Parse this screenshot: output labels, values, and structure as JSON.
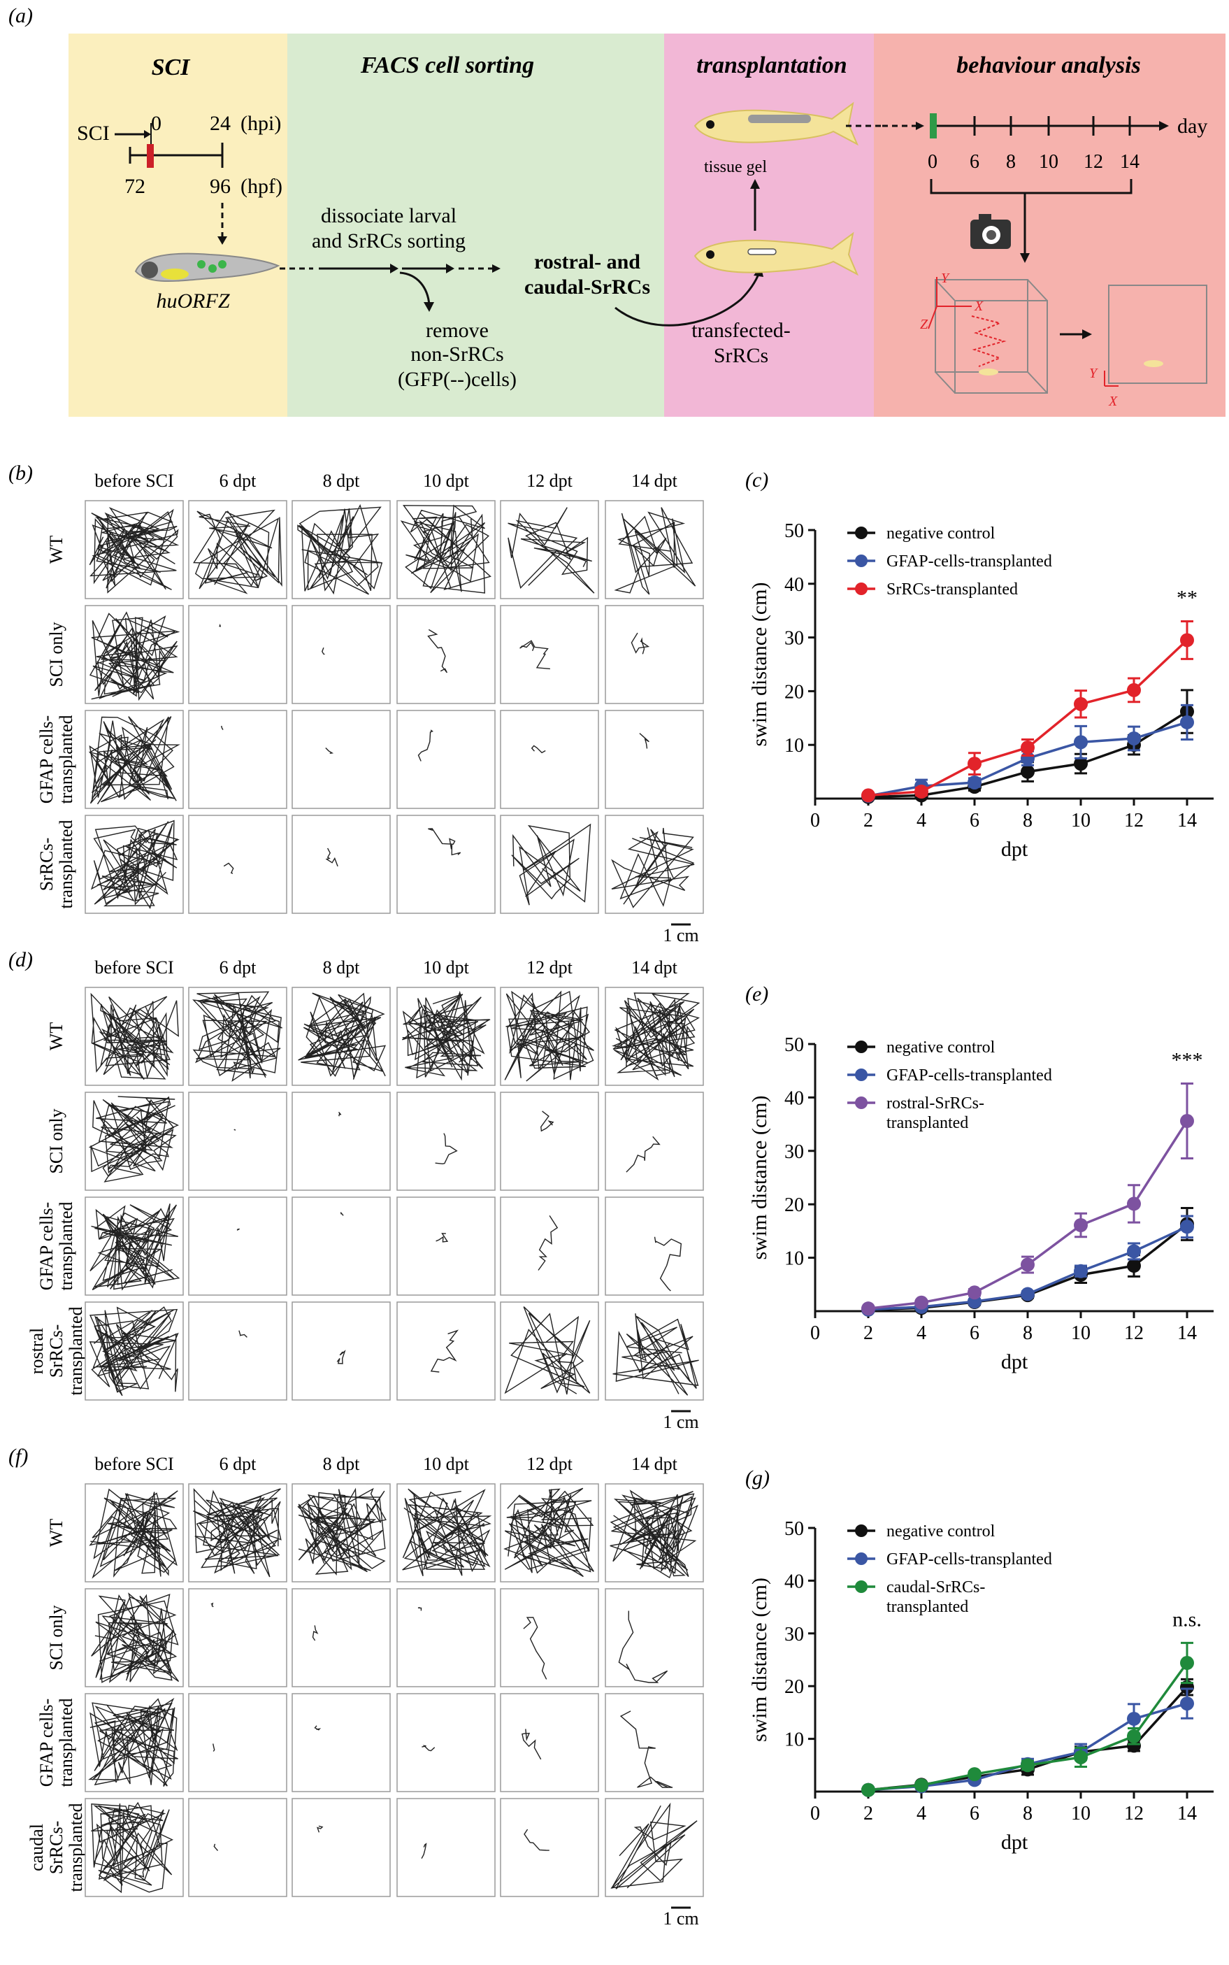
{
  "colors": {
    "sci_bg": "#fbefbe",
    "facs_bg": "#d9ebd0",
    "transplant_bg": "#f2b7d6",
    "behaviour_bg": "#f6b2ad",
    "black_series": "#111111",
    "blue_series": "#3a56a4",
    "red_series": "#e2232a",
    "purple_series": "#7d52a0",
    "green_series": "#1f8a3b",
    "fish": "#f4e39a",
    "red_mark": "#cc2028",
    "green_mark": "#2f9a48"
  },
  "panel_a": {
    "label": "(a)",
    "sci": {
      "title": "SCI",
      "sci_arrow_label": "SCI",
      "hpi_zero": "0",
      "hpi_24": "24",
      "hpi_unit": "(hpi)",
      "hpf_72": "72",
      "hpf_96": "96",
      "hpf_unit": "(hpf)",
      "larva_label": "huORFZ"
    },
    "facs": {
      "title": "FACS cell sorting",
      "step1_line1": "dissociate larval",
      "step1_line2": "and SrRCs sorting",
      "remove_line1": "remove",
      "remove_line2": "non-SrRCs",
      "remove_line3": "(GFP(--)cells)",
      "result_line1": "rostral- and",
      "result_line2": "caudal-SrRCs"
    },
    "transplantation": {
      "title": "transplantation",
      "gel_label": "tissue gel",
      "cells_line1": "transfected-",
      "cells_line2": "SrRCs"
    },
    "behaviour": {
      "title": "behaviour analysis",
      "day_label": "day",
      "ticks": [
        "0",
        "6",
        "8",
        "10",
        "12",
        "14"
      ],
      "axis_x": "X",
      "axis_y": "Y",
      "axis_z": "Z"
    }
  },
  "trajectory_panels": [
    {
      "label": "(b)",
      "columns": [
        "before SCI",
        "6 dpt",
        "8 dpt",
        "10 dpt",
        "12 dpt",
        "14 dpt"
      ],
      "rows": [
        {
          "name": "WT",
          "lines": [
            "WT"
          ],
          "activity": [
            1,
            0.6,
            0.65,
            0.85,
            0.35,
            0.4
          ]
        },
        {
          "name": "SCI only",
          "lines": [
            "SCI only"
          ],
          "activity": [
            1,
            0.02,
            0.05,
            0.15,
            0.2,
            0.15
          ]
        },
        {
          "name": "GFAP cells transplanted",
          "lines": [
            "GFAP cells-",
            "transplanted"
          ],
          "activity": [
            1,
            0.02,
            0.05,
            0.12,
            0.08,
            0.08
          ]
        },
        {
          "name": "SrRCs transplanted",
          "lines": [
            "SrRCs-",
            "transplanted"
          ],
          "activity": [
            1,
            0.07,
            0.12,
            0.18,
            0.3,
            0.4
          ]
        }
      ],
      "scale_bar": "1 cm"
    },
    {
      "label": "(d)",
      "columns": [
        "before SCI",
        "6 dpt",
        "8 dpt",
        "10 dpt",
        "12 dpt",
        "14 dpt"
      ],
      "rows": [
        {
          "name": "WT",
          "lines": [
            "WT"
          ],
          "activity": [
            1,
            1,
            1,
            1,
            1,
            1
          ]
        },
        {
          "name": "SCI only",
          "lines": [
            "SCI only"
          ],
          "activity": [
            1,
            0.03,
            0.04,
            0.14,
            0.14,
            0.15
          ]
        },
        {
          "name": "GFAP cells transplanted",
          "lines": [
            "GFAP cells-",
            "transplanted"
          ],
          "activity": [
            1,
            0.04,
            0.04,
            0.12,
            0.15,
            0.18
          ]
        },
        {
          "name": "rostral SrRCs transplanted",
          "lines": [
            "rostral",
            "SrRCs-",
            "transplanted"
          ],
          "activity": [
            1,
            0.06,
            0.12,
            0.16,
            0.35,
            0.45
          ]
        }
      ],
      "scale_bar": "1 cm"
    },
    {
      "label": "(f)",
      "columns": [
        "before SCI",
        "6 dpt",
        "8 dpt",
        "10 dpt",
        "12 dpt",
        "14 dpt"
      ],
      "rows": [
        {
          "name": "WT",
          "lines": [
            "WT"
          ],
          "activity": [
            1,
            1,
            1,
            1,
            1,
            1
          ]
        },
        {
          "name": "SCI only",
          "lines": [
            "SCI only"
          ],
          "activity": [
            1,
            0.03,
            0.08,
            0.05,
            0.15,
            0.22
          ]
        },
        {
          "name": "GFAP cells transplanted",
          "lines": [
            "GFAP cells-",
            "transplanted"
          ],
          "activity": [
            1,
            0.04,
            0.06,
            0.08,
            0.15,
            0.25
          ]
        },
        {
          "name": "caudal SrRCs transplanted",
          "lines": [
            "caudal",
            "SrRCs-",
            "transplanted"
          ],
          "activity": [
            1,
            0.04,
            0.06,
            0.08,
            0.1,
            0.3
          ]
        }
      ],
      "scale_bar": "1 cm"
    }
  ],
  "chart_data": [
    {
      "panel": "(c)",
      "type": "line",
      "xlabel": "dpt",
      "ylabel": "swim distance (cm)",
      "x": [
        2,
        4,
        6,
        8,
        10,
        12,
        14
      ],
      "xticks": [
        0,
        2,
        4,
        6,
        8,
        10,
        12,
        14
      ],
      "yticks": [
        10,
        20,
        30,
        40,
        50
      ],
      "xlim": [
        0,
        15
      ],
      "ylim": [
        0,
        50
      ],
      "annotation": "**",
      "series": [
        {
          "name": "negative control",
          "color": "#111111",
          "values": [
            0.3,
            0.6,
            2.2,
            5,
            6.5,
            10,
            16.2
          ],
          "errors": [
            0.3,
            0.5,
            0.7,
            1.8,
            1.8,
            1.8,
            4
          ]
        },
        {
          "name": "GFAP-cells-transplanted",
          "color": "#3a56a4",
          "values": [
            0.5,
            2.3,
            3,
            7.5,
            10.5,
            11.2,
            14.2
          ],
          "errors": [
            0.3,
            1.2,
            0.8,
            1.3,
            3,
            2.2,
            3.2
          ]
        },
        {
          "name": "SrRCs-transplanted",
          "color": "#e2232a",
          "values": [
            0.6,
            1.3,
            6.5,
            9.5,
            17.6,
            20.2,
            29.5
          ],
          "errors": [
            0.3,
            0.7,
            2,
            1.5,
            2.5,
            2.2,
            3.5
          ]
        }
      ]
    },
    {
      "panel": "(e)",
      "type": "line",
      "xlabel": "dpt",
      "ylabel": "swim distance (cm)",
      "x": [
        2,
        4,
        6,
        8,
        10,
        12,
        14
      ],
      "xticks": [
        0,
        2,
        4,
        6,
        8,
        10,
        12,
        14
      ],
      "yticks": [
        10,
        20,
        30,
        40,
        50
      ],
      "xlim": [
        0,
        15
      ],
      "ylim": [
        0,
        50
      ],
      "annotation": "***",
      "series": [
        {
          "name": "negative control",
          "color": "#111111",
          "values": [
            0.3,
            0.6,
            1.7,
            3,
            6.8,
            8.5,
            16.3
          ],
          "errors": [
            0.2,
            0.3,
            0.5,
            0.5,
            1.5,
            2,
            3
          ]
        },
        {
          "name": "GFAP-cells-transplanted",
          "color": "#3a56a4",
          "values": [
            0.3,
            0.8,
            1.8,
            3.2,
            7.5,
            11.2,
            15.8
          ],
          "errors": [
            0.2,
            0.3,
            0.4,
            0.5,
            1,
            1.5,
            2
          ]
        },
        {
          "name": "rostral-SrRCs-transplanted",
          "legend_lines": [
            "rostral-SrRCs-",
            "transplanted"
          ],
          "color": "#7d52a0",
          "values": [
            0.5,
            1.6,
            3.5,
            8.7,
            16.1,
            20.1,
            35.6
          ],
          "errors": [
            0.2,
            0.4,
            0.6,
            1.5,
            2.2,
            3.5,
            7
          ]
        }
      ]
    },
    {
      "panel": "(g)",
      "type": "line",
      "xlabel": "dpt",
      "ylabel": "swim distance (cm)",
      "x": [
        2,
        4,
        6,
        8,
        10,
        12,
        14
      ],
      "xticks": [
        0,
        2,
        4,
        6,
        8,
        10,
        12,
        14
      ],
      "yticks": [
        10,
        20,
        30,
        40,
        50
      ],
      "xlim": [
        0,
        15
      ],
      "ylim": [
        0,
        50
      ],
      "annotation": "n.s.",
      "series": [
        {
          "name": "negative control",
          "color": "#111111",
          "values": [
            0.3,
            1.3,
            2.8,
            4.2,
            7.5,
            8.7,
            19.8
          ],
          "errors": [
            0.2,
            0.3,
            0.5,
            1,
            1,
            1,
            1.5
          ]
        },
        {
          "name": "GFAP-cells-transplanted",
          "color": "#3a56a4",
          "values": [
            0.3,
            1,
            2.2,
            5.2,
            7.5,
            13.8,
            16.7
          ],
          "errors": [
            0.2,
            0.3,
            0.5,
            1,
            1.5,
            2.8,
            2.8
          ]
        },
        {
          "name": "caudal-SrRCs-transplanted",
          "legend_lines": [
            "caudal-SrRCs-",
            "transplanted"
          ],
          "color": "#1f8a3b",
          "values": [
            0.3,
            1.2,
            3.3,
            5,
            6.5,
            10.5,
            24.4
          ],
          "errors": [
            0.2,
            0.3,
            0.5,
            0.8,
            1.8,
            1.5,
            3.8
          ]
        }
      ]
    }
  ]
}
